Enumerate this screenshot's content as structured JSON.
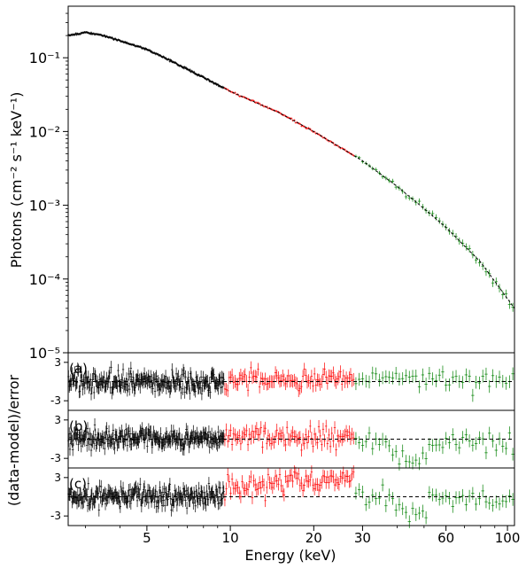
{
  "chart_data": {
    "type": "scatter",
    "x_axis": {
      "label": "Energy (keV)",
      "scale": "log",
      "range": [
        2.6,
        106
      ],
      "ticks": [
        {
          "value": 5,
          "label": "5"
        },
        {
          "value": 10,
          "label": "10"
        },
        {
          "value": 20,
          "label": "20"
        },
        {
          "value": 30,
          "label": "30"
        },
        {
          "value": 60,
          "label": "60"
        },
        {
          "value": 100,
          "label": "100"
        }
      ]
    },
    "spectrum_panel": {
      "ylabel": "Photons (cm⁻² s⁻¹ keV⁻¹)",
      "yscale": "log",
      "ylim": [
        1e-05,
        0.5
      ],
      "ticks": [
        {
          "value": 0.1,
          "label": "10⁻¹"
        },
        {
          "value": 0.01,
          "label": "10⁻²"
        },
        {
          "value": 0.001,
          "label": "10⁻³"
        },
        {
          "value": 0.0001,
          "label": "10⁻⁴"
        },
        {
          "value": 1e-05,
          "label": "10⁻⁵"
        }
      ],
      "model_line": "dashed",
      "model_anchors": [
        [
          2.6,
          0.2
        ],
        [
          3.0,
          0.22
        ],
        [
          3.5,
          0.2
        ],
        [
          5,
          0.13
        ],
        [
          7,
          0.07
        ],
        [
          10,
          0.035
        ],
        [
          15,
          0.018
        ],
        [
          20,
          0.01
        ],
        [
          30,
          0.004
        ],
        [
          40,
          0.0018
        ],
        [
          50,
          0.0009
        ],
        [
          60,
          0.0005
        ],
        [
          80,
          0.00017
        ],
        [
          106,
          4e-05
        ]
      ]
    },
    "residual_ylabel": "(data-model)/error",
    "residual_panels": [
      {
        "label": "(a)",
        "ylim": [
          -4.5,
          4.5
        ],
        "ticks": [
          {
            "value": 3,
            "label": "3"
          },
          {
            "value": -3,
            "label": "-3"
          }
        ]
      },
      {
        "label": "(b)",
        "ylim": [
          -4.5,
          4.5
        ],
        "ticks": [
          {
            "value": 3,
            "label": "3"
          },
          {
            "value": -3,
            "label": "-3"
          }
        ]
      },
      {
        "label": "(c)",
        "ylim": [
          -4.5,
          4.5
        ],
        "ticks": [
          {
            "value": 3,
            "label": "3"
          },
          {
            "value": -3,
            "label": "-3"
          }
        ]
      }
    ],
    "series": [
      {
        "range_keV": [
          2.6,
          9.5
        ],
        "color": "#000000",
        "resid_a": 0,
        "resid_b": 0,
        "resid_c": 0
      },
      {
        "range_keV": [
          9.5,
          28
        ],
        "color": "#ff0000",
        "resid_a": 0.4,
        "resid_b": 0.5,
        "resid_c": 1.5
      },
      {
        "range_keV": [
          28,
          106
        ],
        "color": "#008000",
        "resid_a": 0.3,
        "resid_b": -0.5,
        "resid_c": -0.3
      }
    ],
    "grid": false,
    "legend": "none"
  }
}
